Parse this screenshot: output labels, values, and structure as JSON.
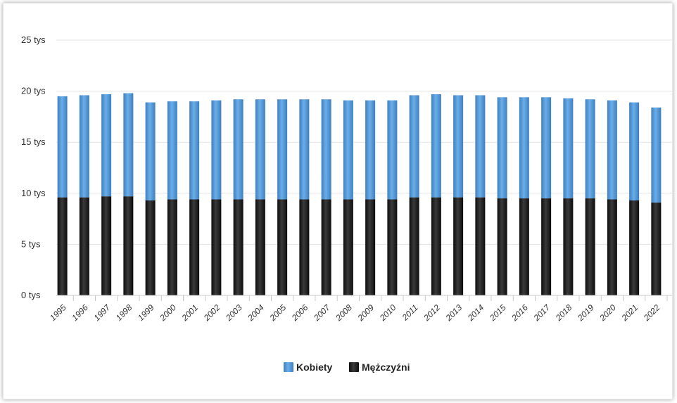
{
  "chart_data": {
    "type": "bar",
    "stacked": true,
    "categories": [
      "1995",
      "1996",
      "1997",
      "1998",
      "1999",
      "2000",
      "2001",
      "2002",
      "2003",
      "2004",
      "2005",
      "2006",
      "2007",
      "2008",
      "2009",
      "2010",
      "2011",
      "2012",
      "2013",
      "2014",
      "2015",
      "2016",
      "2017",
      "2018",
      "2019",
      "2020",
      "2021",
      "2022"
    ],
    "series": [
      {
        "name": "Mężczyźni",
        "color": "#1a1a1a",
        "values": [
          9.6,
          9.6,
          9.7,
          9.7,
          9.3,
          9.4,
          9.4,
          9.4,
          9.4,
          9.4,
          9.4,
          9.4,
          9.4,
          9.4,
          9.4,
          9.4,
          9.6,
          9.6,
          9.6,
          9.6,
          9.5,
          9.5,
          9.5,
          9.5,
          9.5,
          9.4,
          9.3,
          9.1
        ]
      },
      {
        "name": "Kobiety",
        "color": "#4a90d0",
        "values": [
          9.9,
          10.0,
          10.0,
          10.1,
          9.6,
          9.6,
          9.6,
          9.7,
          9.8,
          9.8,
          9.8,
          9.8,
          9.8,
          9.7,
          9.7,
          9.7,
          10.0,
          10.1,
          10.0,
          10.0,
          9.9,
          9.9,
          9.9,
          9.8,
          9.7,
          9.7,
          9.6,
          9.3
        ]
      }
    ],
    "ylim": [
      0,
      25
    ],
    "yticks": [
      {
        "value": 0,
        "label": "0 tys"
      },
      {
        "value": 5,
        "label": "5 tys"
      },
      {
        "value": 10,
        "label": "10 tys"
      },
      {
        "value": 15,
        "label": "15 tys"
      },
      {
        "value": 20,
        "label": "20 tys"
      },
      {
        "value": 25,
        "label": "25 tys"
      }
    ],
    "grid": true,
    "legend_position": "bottom-center"
  }
}
